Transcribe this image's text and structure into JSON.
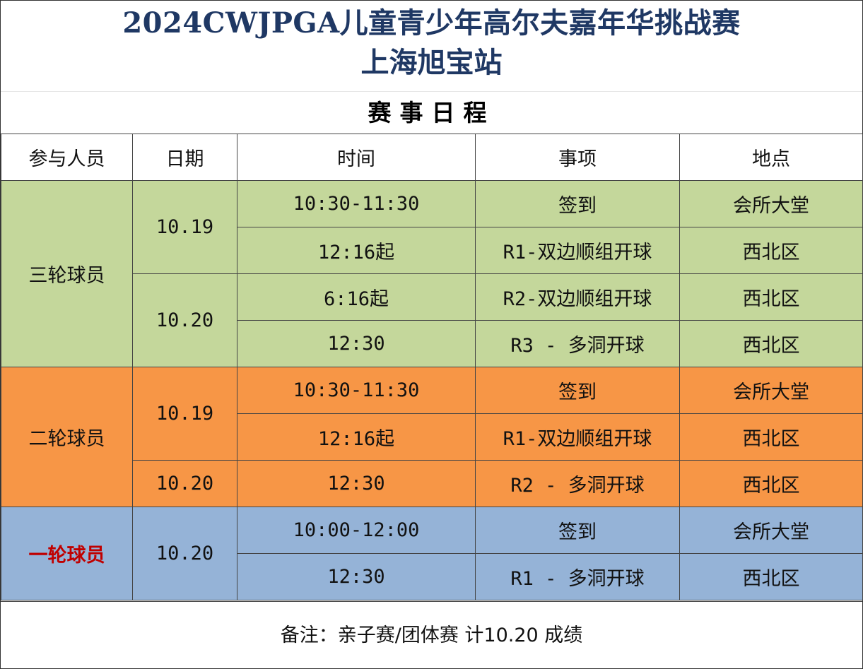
{
  "title": {
    "line1": "2024CWJPGA儿童青少年高尔夫嘉年华挑战赛",
    "line2": "上海旭宝站"
  },
  "subtitle": "赛事日程",
  "headers": [
    "参与人员",
    "日期",
    "时间",
    "事项",
    "地点"
  ],
  "groups": [
    {
      "participant": "三轮球员",
      "color": "#c4d79b",
      "days": [
        {
          "date": "10.19",
          "rows": [
            {
              "time": "10:30-11:30",
              "item": "签到",
              "place": "会所大堂"
            },
            {
              "time": "12:16起",
              "item": "R1-双边顺组开球",
              "place": "西北区"
            }
          ]
        },
        {
          "date": "10.20",
          "rows": [
            {
              "time": "6:16起",
              "item": "R2-双边顺组开球",
              "place": "西北区"
            },
            {
              "time": "12:30",
              "item": "R3 - 多洞开球",
              "place": "西北区"
            }
          ]
        }
      ]
    },
    {
      "participant": "二轮球员",
      "color": "#f79646",
      "days": [
        {
          "date": "10.19",
          "rows": [
            {
              "time": "10:30-11:30",
              "item": "签到",
              "place": "会所大堂"
            },
            {
              "time": "12:16起",
              "item": "R1-双边顺组开球",
              "place": "西北区"
            }
          ]
        },
        {
          "date": "10.20",
          "rows": [
            {
              "time": "12:30",
              "item": "R2 - 多洞开球",
              "place": "西北区"
            }
          ]
        }
      ]
    },
    {
      "participant": "一轮球员",
      "participant_color": "#c00000",
      "color": "#95b3d7",
      "days": [
        {
          "date": "10.20",
          "rows": [
            {
              "time": "10:00-12:00",
              "item": "签到",
              "place": "会所大堂"
            },
            {
              "time": "12:30",
              "item": "R1 - 多洞开球",
              "place": "西北区"
            }
          ]
        }
      ]
    }
  ],
  "note": "备注：亲子赛/团体赛 计10.20 成绩"
}
